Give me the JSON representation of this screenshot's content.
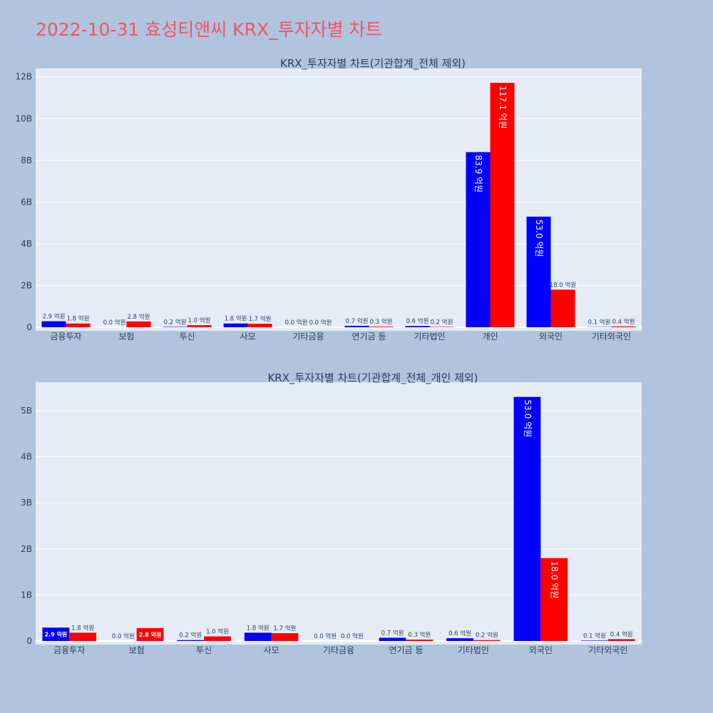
{
  "page_title": "2022-10-31 효성티앤씨 KRX_투자자별 차트",
  "colors": {
    "buy": "#0000ff",
    "sell": "#ff0000",
    "plot_bg": "#e5ecf6",
    "page_bg": "#b0c4de"
  },
  "chart_data": [
    {
      "type": "bar",
      "title": "KRX_투자자별 차트(기관합계_전체 제외)",
      "categories": [
        "금융투자",
        "보험",
        "투신",
        "사모",
        "기타금융",
        "연기금 등",
        "기타법인",
        "개인",
        "외국인",
        "기타외국인"
      ],
      "series": [
        {
          "values": [
            290000000,
            0,
            20000000,
            180000000,
            0,
            70000000,
            60000000,
            8390000000,
            5300000000,
            10000000
          ],
          "labels": [
            "2.9 억원",
            "0.0 억원",
            "0.2 억원",
            "1.8 억원",
            "0.0 억원",
            "0.7 억원",
            "0.6 억원",
            "83.9 억원",
            "53.0 억원",
            "0.1 억원"
          ]
        },
        {
          "values": [
            180000000,
            280000000,
            100000000,
            170000000,
            0,
            30000000,
            20000000,
            11710000000,
            1800000000,
            40000000
          ],
          "labels": [
            "1.8 억원",
            "2.8 억원",
            "1.0 억원",
            "1.7 억원",
            "0.0 억원",
            "0.3 억원",
            "0.2 억원",
            "117.1 억원",
            "18.0 억원",
            "0.4 억원"
          ]
        }
      ],
      "yticks": [
        "0",
        "2B",
        "4B",
        "6B",
        "8B",
        "10B",
        "12B"
      ],
      "ylim": [
        0,
        12400000000
      ],
      "grid": true,
      "legend": "none"
    },
    {
      "type": "bar",
      "title": "KRX_투자자별 차트(기관합계_전체_개인 제외)",
      "categories": [
        "금융투자",
        "보험",
        "투신",
        "사모",
        "기타금융",
        "연기금 등",
        "기타법인",
        "외국인",
        "기타외국인"
      ],
      "series": [
        {
          "values": [
            290000000,
            0,
            20000000,
            180000000,
            0,
            70000000,
            60000000,
            5300000000,
            10000000
          ],
          "labels": [
            "2.9 억원",
            "0.0 억원",
            "0.2 억원",
            "1.8 억원",
            "0.0 억원",
            "0.7 억원",
            "0.6 억원",
            "53.0 억원",
            "0.1 억원"
          ]
        },
        {
          "values": [
            180000000,
            280000000,
            100000000,
            170000000,
            0,
            30000000,
            20000000,
            1800000000,
            40000000
          ],
          "labels": [
            "1.8 억원",
            "2.8 억원",
            "1.0 억원",
            "1.7 억원",
            "0.0 억원",
            "0.3 억원",
            "0.2 억원",
            "18.0 억원",
            "0.4 억원"
          ]
        }
      ],
      "yticks": [
        "0",
        "1B",
        "2B",
        "3B",
        "4B",
        "5B"
      ],
      "ylim": [
        0,
        5620000000
      ],
      "grid": true,
      "legend": "none"
    }
  ]
}
